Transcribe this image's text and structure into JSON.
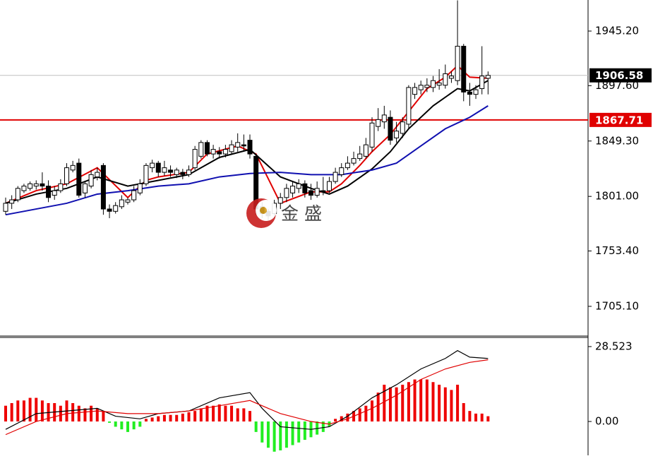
{
  "watermark": "金 盛",
  "chart_data": [
    {
      "type": "candlestick",
      "ylim": [
        1679.2,
        1972.3
      ],
      "yticks": [
        {
          "value": 1945.2,
          "label": "1945.20"
        },
        {
          "value": 1897.6,
          "label": "1897.60"
        },
        {
          "value": 1849.3,
          "label": "1849.30"
        },
        {
          "value": 1801.0,
          "label": "1801.00"
        },
        {
          "value": 1753.4,
          "label": "1753.40"
        },
        {
          "value": 1705.1,
          "label": "1705.10"
        }
      ],
      "up_color": "#ffffff",
      "down_color": "#000000",
      "candles": [
        [
          1788,
          1800,
          1785,
          1795
        ],
        [
          1795,
          1802,
          1790,
          1798
        ],
        [
          1798,
          1810,
          1796,
          1808
        ],
        [
          1806,
          1812,
          1804,
          1810
        ],
        [
          1808,
          1814,
          1806,
          1812
        ],
        [
          1810,
          1815,
          1807,
          1812
        ],
        [
          1812,
          1822,
          1806,
          1810
        ],
        [
          1810,
          1815,
          1796,
          1800
        ],
        [
          1802,
          1810,
          1798,
          1806
        ],
        [
          1806,
          1816,
          1804,
          1812
        ],
        [
          1812,
          1830,
          1810,
          1826
        ],
        [
          1824,
          1832,
          1822,
          1828
        ],
        [
          1830,
          1834,
          1800,
          1802
        ],
        [
          1804,
          1814,
          1800,
          1812
        ],
        [
          1810,
          1824,
          1808,
          1820
        ],
        [
          1818,
          1826,
          1815,
          1822
        ],
        [
          1828,
          1830,
          1785,
          1790
        ],
        [
          1790,
          1794,
          1782,
          1788
        ],
        [
          1788,
          1796,
          1786,
          1793
        ],
        [
          1792,
          1802,
          1790,
          1798
        ],
        [
          1796,
          1800,
          1794,
          1798
        ],
        [
          1798,
          1810,
          1796,
          1806
        ],
        [
          1804,
          1816,
          1802,
          1812
        ],
        [
          1812,
          1830,
          1810,
          1828
        ],
        [
          1826,
          1833,
          1822,
          1830
        ],
        [
          1830,
          1832,
          1818,
          1822
        ],
        [
          1822,
          1832,
          1819,
          1826
        ],
        [
          1824,
          1828,
          1818,
          1822
        ],
        [
          1820,
          1826,
          1817,
          1824
        ],
        [
          1822,
          1825,
          1816,
          1820
        ],
        [
          1820,
          1828,
          1818,
          1824
        ],
        [
          1826,
          1845,
          1824,
          1842
        ],
        [
          1836,
          1850,
          1834,
          1848
        ],
        [
          1848,
          1850,
          1836,
          1838
        ],
        [
          1838,
          1846,
          1834,
          1842
        ],
        [
          1840,
          1844,
          1834,
          1838
        ],
        [
          1838,
          1846,
          1835,
          1842
        ],
        [
          1840,
          1850,
          1838,
          1846
        ],
        [
          1844,
          1856,
          1840,
          1848
        ],
        [
          1846,
          1855,
          1840,
          1845
        ],
        [
          1850,
          1855,
          1834,
          1838
        ],
        [
          1836,
          1838,
          1785,
          1790
        ],
        [
          1792,
          1796,
          1782,
          1786
        ],
        [
          1788,
          1790,
          1780,
          1784
        ],
        [
          1786,
          1798,
          1782,
          1795
        ],
        [
          1795,
          1804,
          1790,
          1800
        ],
        [
          1800,
          1812,
          1796,
          1808
        ],
        [
          1804,
          1814,
          1800,
          1810
        ],
        [
          1808,
          1816,
          1804,
          1812
        ],
        [
          1812,
          1815,
          1800,
          1804
        ],
        [
          1806,
          1812,
          1798,
          1802
        ],
        [
          1802,
          1814,
          1800,
          1808
        ],
        [
          1806,
          1818,
          1802,
          1805
        ],
        [
          1806,
          1818,
          1804,
          1814
        ],
        [
          1814,
          1826,
          1812,
          1822
        ],
        [
          1820,
          1830,
          1818,
          1826
        ],
        [
          1826,
          1836,
          1824,
          1830
        ],
        [
          1830,
          1840,
          1828,
          1834
        ],
        [
          1834,
          1845,
          1832,
          1838
        ],
        [
          1836,
          1852,
          1834,
          1846
        ],
        [
          1844,
          1870,
          1840,
          1865
        ],
        [
          1862,
          1878,
          1858,
          1868
        ],
        [
          1866,
          1880,
          1860,
          1872
        ],
        [
          1870,
          1876,
          1846,
          1850
        ],
        [
          1852,
          1866,
          1848,
          1858
        ],
        [
          1856,
          1870,
          1852,
          1866
        ],
        [
          1864,
          1898,
          1860,
          1896
        ],
        [
          1890,
          1900,
          1886,
          1896
        ],
        [
          1894,
          1902,
          1890,
          1898
        ],
        [
          1896,
          1904,
          1892,
          1898
        ],
        [
          1896,
          1906,
          1892,
          1902
        ],
        [
          1898,
          1912,
          1894,
          1900
        ],
        [
          1898,
          1916,
          1895,
          1908
        ],
        [
          1904,
          1910,
          1900,
          1906
        ],
        [
          1902,
          1972,
          1898,
          1932
        ],
        [
          1932,
          1934,
          1884,
          1892
        ],
        [
          1892,
          1900,
          1880,
          1890
        ],
        [
          1890,
          1898,
          1886,
          1894
        ],
        [
          1895,
          1932,
          1890,
          1906
        ],
        [
          1904,
          1910,
          1890,
          1906.58
        ]
      ],
      "series": [
        {
          "color": "#e00000",
          "x": [
            0,
            5,
            10,
            15,
            20,
            23,
            25,
            30,
            33,
            38,
            41,
            45,
            50,
            53,
            55,
            58,
            60,
            63,
            66,
            69,
            72,
            74,
            76,
            79
          ],
          "values": [
            1795,
            1806,
            1812,
            1826,
            1800,
            1815,
            1818,
            1822,
            1838,
            1845,
            1838,
            1795,
            1805,
            1805,
            1812,
            1828,
            1840,
            1855,
            1875,
            1895,
            1905,
            1915,
            1905,
            1904
          ]
        },
        {
          "color": "#000000",
          "x": [
            0,
            5,
            10,
            15,
            20,
            25,
            30,
            35,
            40,
            45,
            50,
            53,
            56,
            60,
            63,
            66,
            70,
            74,
            76,
            79
          ],
          "values": [
            1795,
            1803,
            1808,
            1818,
            1810,
            1815,
            1820,
            1835,
            1842,
            1818,
            1808,
            1803,
            1810,
            1825,
            1840,
            1860,
            1880,
            1895,
            1893,
            1902
          ]
        },
        {
          "color": "#1010b0",
          "x": [
            0,
            10,
            15,
            20,
            25,
            30,
            35,
            40,
            45,
            50,
            55,
            60,
            64,
            68,
            72,
            76,
            79
          ],
          "values": [
            1785,
            1795,
            1803,
            1806,
            1810,
            1812,
            1818,
            1821,
            1822,
            1820,
            1820,
            1824,
            1830,
            1845,
            1860,
            1870,
            1880
          ]
        }
      ],
      "reference_lines": [
        {
          "value": 1906.58,
          "color": "#c0c0c0",
          "label_color": "#000000"
        },
        {
          "value": 1867.71,
          "color": "#e00000",
          "label_color": "#e00000"
        }
      ]
    },
    {
      "type": "macd",
      "ylim": [
        -12.9,
        32.0
      ],
      "yticks": [
        28.523,
        {
          "value": 0,
          "label": "0.00"
        }
      ],
      "up_color": "#ee0000",
      "down_color": "#22ee22",
      "values": [
        6,
        7,
        8,
        8,
        9,
        9,
        8,
        7,
        7,
        6,
        8,
        7,
        6,
        5,
        6,
        5,
        4,
        -0.5,
        -2,
        -3,
        -4,
        -3,
        -2,
        1,
        1.5,
        2,
        2.5,
        2.5,
        2.5,
        3,
        3.5,
        4,
        5,
        6,
        6,
        6.5,
        6,
        6,
        5,
        5,
        4,
        -4,
        -8,
        -10,
        -11.5,
        -11,
        -10,
        -9,
        -8,
        -7,
        -6,
        -5,
        -4,
        -2,
        1,
        2,
        3,
        4,
        5,
        6,
        8,
        11,
        14,
        13,
        13,
        14,
        15,
        16,
        16,
        16,
        15,
        14,
        13,
        12,
        14,
        7,
        4,
        3,
        3,
        2
      ],
      "series": [
        {
          "color": "#000000",
          "x": [
            0,
            5,
            10,
            15,
            18,
            22,
            25,
            30,
            35,
            40,
            42,
            45,
            50,
            53,
            56,
            60,
            64,
            68,
            72,
            74,
            76,
            79
          ],
          "values": [
            -3,
            3,
            4,
            5,
            2,
            1,
            3,
            4,
            9,
            11,
            5,
            -2,
            -3,
            -2,
            2,
            9,
            14,
            20,
            24,
            27,
            24.5,
            24
          ]
        },
        {
          "color": "#e00000",
          "x": [
            0,
            5,
            10,
            15,
            20,
            25,
            30,
            35,
            40,
            45,
            50,
            53,
            56,
            60,
            64,
            68,
            72,
            76,
            79
          ],
          "values": [
            -5,
            0,
            3,
            4,
            3,
            3,
            4,
            6,
            8,
            3,
            0,
            -1,
            1,
            5,
            10,
            16,
            20,
            22.5,
            23.5
          ]
        }
      ]
    }
  ]
}
